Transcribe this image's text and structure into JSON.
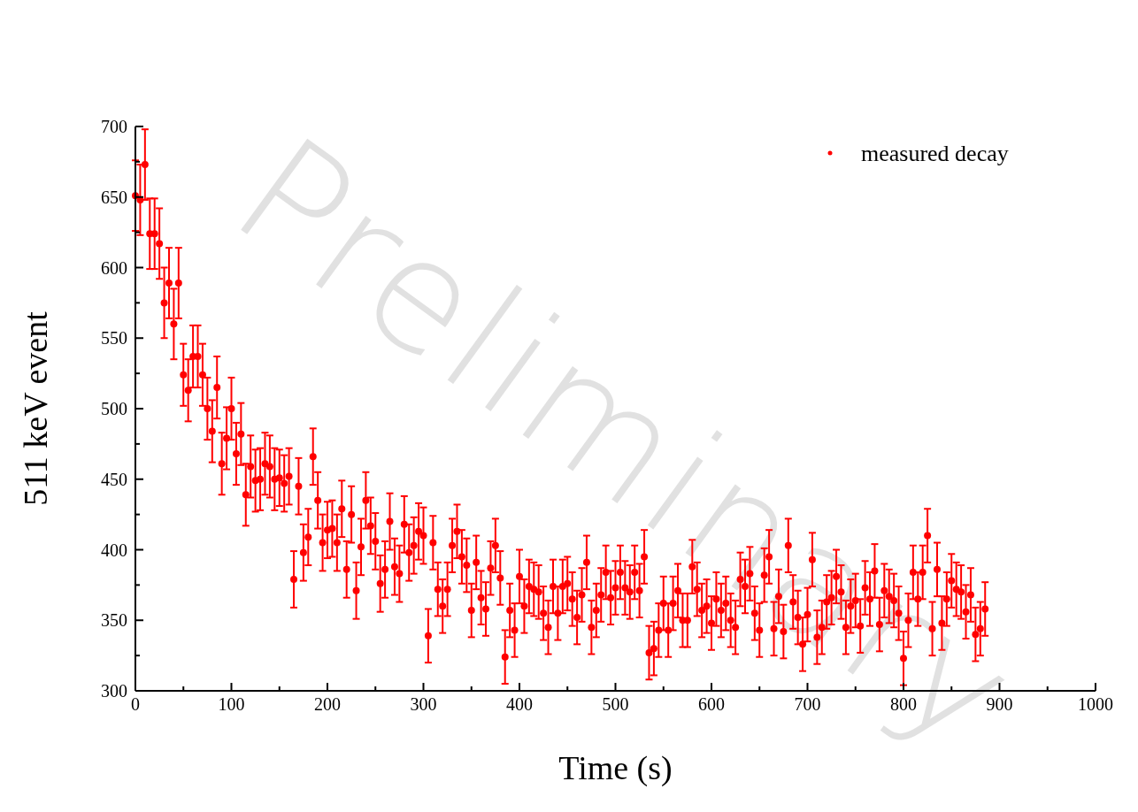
{
  "chart_data": {
    "type": "scatter",
    "xlabel": "Time (s)",
    "ylabel": "511 keV event",
    "annotations": [
      "Preliminary"
    ],
    "xlim": [
      0,
      1000
    ],
    "ylim": [
      300,
      700
    ],
    "xticks": [
      0,
      {
        "value": 50,
        "label": null
      },
      100,
      {
        "value": 150,
        "label": null
      },
      200,
      {
        "value": 250,
        "label": null
      },
      300,
      {
        "value": 350,
        "label": null
      },
      400,
      {
        "value": 450,
        "label": null
      },
      500,
      {
        "value": 550,
        "label": null
      },
      600,
      {
        "value": 650,
        "label": null
      },
      700,
      {
        "value": 750,
        "label": null
      },
      800,
      {
        "value": 850,
        "label": null
      },
      900,
      {
        "value": 950,
        "label": null
      },
      1000
    ],
    "yticks": [
      300,
      {
        "value": 325,
        "label": null
      },
      350,
      {
        "value": 375,
        "label": null
      },
      400,
      {
        "value": 425,
        "label": null
      },
      450,
      {
        "value": 475,
        "label": null
      },
      500,
      {
        "value": 525,
        "label": null
      },
      550,
      {
        "value": 575,
        "label": null
      },
      600,
      {
        "value": 625,
        "label": null
      },
      650,
      {
        "value": 675,
        "label": null
      },
      700
    ],
    "grid": false,
    "legend": "top right",
    "marker": "circle",
    "series": [
      {
        "name": "measured decay",
        "color": "#ff0000",
        "x": [
          0,
          5,
          10,
          15,
          20,
          25,
          30,
          35,
          40,
          45,
          50,
          55,
          60,
          65,
          70,
          75,
          80,
          85,
          90,
          95,
          100,
          105,
          110,
          115,
          120,
          125,
          130,
          135,
          140,
          145,
          150,
          155,
          160,
          165,
          170,
          175,
          180,
          185,
          190,
          195,
          200,
          205,
          210,
          215,
          220,
          225,
          230,
          235,
          240,
          245,
          250,
          255,
          260,
          265,
          270,
          275,
          280,
          285,
          290,
          295,
          300,
          305,
          310,
          315,
          320,
          325,
          330,
          335,
          340,
          345,
          350,
          355,
          360,
          365,
          370,
          375,
          380,
          385,
          390,
          395,
          400,
          405,
          410,
          415,
          420,
          425,
          430,
          435,
          440,
          445,
          450,
          455,
          460,
          465,
          470,
          475,
          480,
          485,
          490,
          495,
          500,
          505,
          510,
          515,
          520,
          525,
          530,
          535,
          540,
          545,
          550,
          555,
          560,
          565,
          570,
          575,
          580,
          585,
          590,
          595,
          600,
          605,
          610,
          615,
          620,
          625,
          630,
          635,
          640,
          645,
          650,
          655,
          660,
          665,
          670,
          675,
          680,
          685,
          690,
          695,
          700,
          705,
          710,
          715,
          720,
          725,
          730,
          735,
          740,
          745,
          750,
          755,
          760,
          765,
          770,
          775,
          780,
          785,
          790,
          795,
          800,
          805,
          810,
          815,
          820,
          825,
          830,
          835,
          840,
          845,
          850,
          855,
          860,
          865,
          870,
          875,
          880,
          885
        ],
        "values": [
          651,
          648,
          673,
          624,
          624,
          617,
          575,
          589,
          560,
          589,
          524,
          513,
          537,
          537,
          524,
          500,
          484,
          515,
          461,
          479,
          500,
          468,
          482,
          439,
          459,
          449,
          450,
          461,
          459,
          450,
          451,
          447,
          452,
          379,
          445,
          398,
          409,
          466,
          435,
          405,
          414,
          415,
          405,
          429,
          386,
          425,
          371,
          402,
          435,
          417,
          406,
          376,
          386,
          420,
          388,
          383,
          418,
          398,
          403,
          413,
          410,
          339,
          405,
          372,
          360,
          372,
          403,
          413,
          395,
          389,
          357,
          391,
          366,
          358,
          387,
          403,
          380,
          324,
          357,
          343,
          381,
          360,
          374,
          372,
          370,
          355,
          345,
          374,
          355,
          374,
          376,
          365,
          352,
          368,
          391,
          345,
          357,
          368,
          384,
          366,
          373,
          384,
          373,
          370,
          384,
          371,
          395,
          327,
          330,
          343,
          362,
          343,
          362,
          371,
          350,
          350,
          388,
          372,
          357,
          360,
          348,
          365,
          357,
          362,
          350,
          345,
          379,
          374,
          383,
          355,
          343,
          382,
          395,
          344,
          367,
          342,
          403,
          363,
          352,
          333,
          354,
          393,
          338,
          345,
          363,
          366,
          381,
          370,
          345,
          360,
          364,
          346,
          373,
          365,
          385,
          347,
          371,
          367,
          364,
          355,
          323,
          350,
          384,
          365,
          384,
          410,
          344,
          386,
          348,
          365,
          378,
          372,
          370,
          356,
          368,
          340,
          344,
          358
        ],
        "errors": [
          25,
          25,
          25,
          25,
          25,
          25,
          25,
          25,
          25,
          25,
          22,
          22,
          22,
          22,
          22,
          22,
          22,
          22,
          22,
          22,
          22,
          22,
          22,
          22,
          22,
          22,
          22,
          22,
          22,
          22,
          20,
          20,
          20,
          20,
          20,
          20,
          20,
          20,
          20,
          20,
          20,
          20,
          20,
          20,
          20,
          20,
          20,
          20,
          20,
          20,
          20,
          20,
          20,
          20,
          20,
          20,
          20,
          20,
          20,
          20,
          20,
          19,
          19,
          19,
          19,
          19,
          19,
          19,
          19,
          19,
          19,
          19,
          19,
          19,
          19,
          19,
          19,
          19,
          19,
          19,
          19,
          19,
          19,
          19,
          19,
          19,
          19,
          19,
          19,
          19,
          19,
          19,
          19,
          19,
          19,
          19,
          19,
          19,
          19,
          19,
          19,
          19,
          19,
          19,
          19,
          19,
          19,
          19,
          19,
          19,
          19,
          19,
          19,
          19,
          19,
          19,
          19,
          19,
          19,
          19,
          19,
          19,
          19,
          19,
          19,
          19,
          19,
          19,
          19,
          19,
          19,
          19,
          19,
          19,
          19,
          19,
          19,
          19,
          19,
          19,
          19,
          19,
          19,
          19,
          19,
          19,
          19,
          19,
          19,
          19,
          19,
          19,
          19,
          19,
          19,
          19,
          19,
          19,
          19,
          19,
          19,
          19,
          19,
          19,
          19,
          19,
          19,
          19,
          19,
          19,
          19,
          19,
          19,
          19,
          19,
          19,
          19,
          19
        ]
      }
    ]
  }
}
